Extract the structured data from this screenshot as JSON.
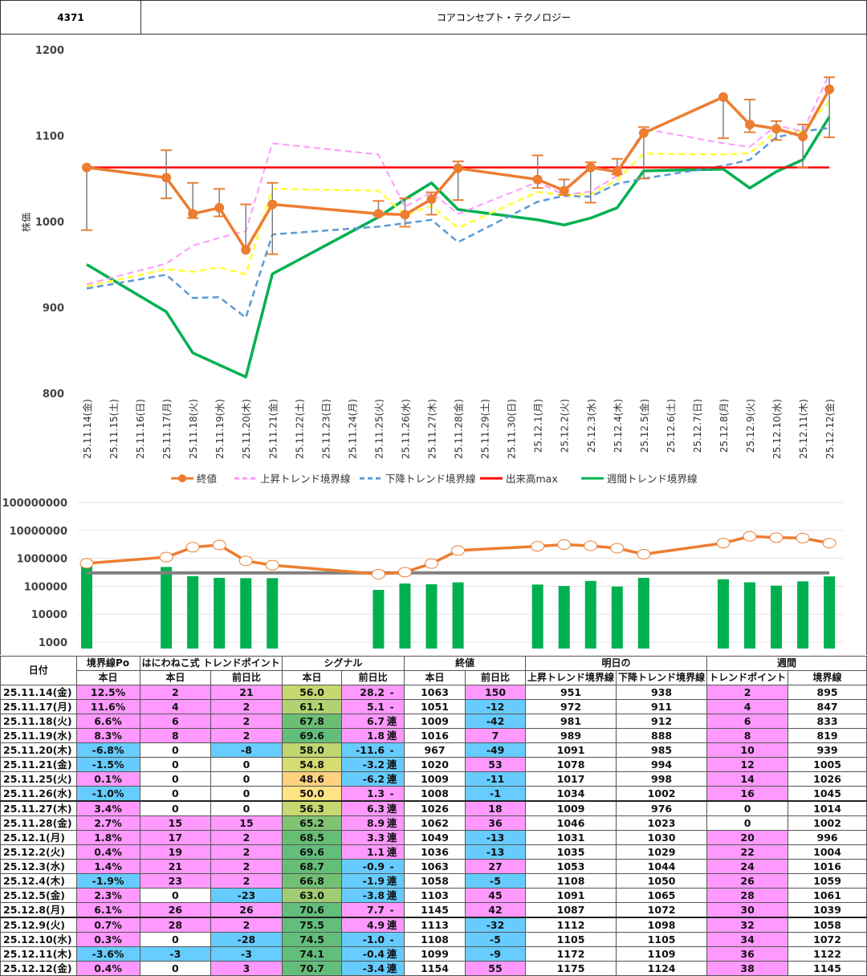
{
  "header": {
    "code": "4371",
    "title": "コアコンセプト・テクノロジー"
  },
  "colors": {
    "close": "#ed7d31",
    "upper": "#ff99ff",
    "lower": "#5b9bd5",
    "mid": "#ffff33",
    "volmax": "#ff0000",
    "weekly": "#00b050",
    "volume_bar": "#00b050",
    "volume_line": "#ed7d31",
    "volume_ref": "#808080",
    "pink_cell": "#ff99ff",
    "blue_cell": "#66ccff"
  },
  "chart_data": [
    {
      "type": "line",
      "ylabel": "株価",
      "ylim": [
        800,
        1200
      ],
      "yticks": [
        "800",
        "900",
        "1000",
        "1100",
        "1200"
      ],
      "grid": false,
      "legend_placement": "bottom",
      "categories": [
        "25.11.14(金)",
        "25.11.15(土)",
        "25.11.16(日)",
        "25.11.17(月)",
        "25.11.18(火)",
        "25.11.19(水)",
        "25.11.20(木)",
        "25.11.21(金)",
        "25.11.22(土)",
        "25.11.23(日)",
        "25.11.24(月)",
        "25.11.25(火)",
        "25.11.26(水)",
        "25.11.27(木)",
        "25.11.28(金)",
        "25.11.29(土)",
        "25.11.30(日)",
        "25.12.1(月)",
        "25.12.2(火)",
        "25.12.3(水)",
        "25.12.4(木)",
        "25.12.5(金)",
        "25.12.6(土)",
        "25.12.7(日)",
        "25.12.8(月)",
        "25.12.9(火)",
        "25.12.10(水)",
        "25.12.11(木)",
        "25.12.12(金)"
      ],
      "x": [
        "25.11.14(金)",
        "25.11.17(月)",
        "25.11.18(火)",
        "25.11.19(水)",
        "25.11.20(木)",
        "25.11.21(金)",
        "25.11.25(火)",
        "25.11.26(水)",
        "25.11.27(木)",
        "25.11.28(金)",
        "25.12.1(月)",
        "25.12.2(火)",
        "25.12.3(水)",
        "25.12.4(木)",
        "25.12.5(金)",
        "25.12.8(月)",
        "25.12.9(火)",
        "25.12.10(水)",
        "25.12.11(木)",
        "25.12.12(金)"
      ],
      "series": [
        {
          "name": "終値",
          "key": "close",
          "style": "line-marker",
          "values": [
            1063,
            1051,
            1009,
            1016,
            967,
            1020,
            1009,
            1008,
            1026,
            1062,
            1049,
            1036,
            1063,
            1058,
            1103,
            1145,
            1113,
            1108,
            1099,
            1154
          ],
          "error_high": [
            1063,
            1083,
            1045,
            1038,
            1020,
            1045,
            1024,
            1027,
            1034,
            1070,
            1077,
            1049,
            1069,
            1073,
            1110,
            1145,
            1142,
            1117,
            1113,
            1168
          ],
          "error_low": [
            990,
            1027,
            1004,
            1006,
            967,
            962,
            1007,
            994,
            1008,
            1025,
            1039,
            1031,
            1022,
            1055,
            1050,
            1097,
            1104,
            1095,
            1063,
            1098
          ]
        },
        {
          "name": "上昇トレンド境界線",
          "key": "upper",
          "style": "dashed",
          "values": [
            927,
            951,
            972,
            981,
            989,
            1091,
            1078,
            1017,
            1034,
            1009,
            1046,
            1031,
            1035,
            1053,
            1108,
            1091,
            1087,
            1112,
            1105,
            1172
          ]
        },
        {
          "name": "下降トレンド境界線",
          "key": "lower",
          "style": "dashed",
          "values": [
            922,
            938,
            911,
            912,
            888,
            985,
            994,
            998,
            1002,
            976,
            1023,
            1030,
            1029,
            1044,
            1050,
            1065,
            1072,
            1098,
            1105,
            1109
          ]
        },
        {
          "key": "mid",
          "style": "dashed",
          "values": [
            924.5,
            944.5,
            941.5,
            946.5,
            938.5,
            1038,
            1036,
            1007.5,
            1018,
            992.5,
            1034.5,
            1030.5,
            1032,
            1048.5,
            1079,
            1078,
            1079.5,
            1105,
            1105,
            1140.5
          ]
        },
        {
          "name": "出来高max",
          "key": "volmax",
          "style": "line",
          "constant": 1063
        },
        {
          "name": "週間トレンド境界線",
          "key": "weekly",
          "style": "line",
          "values": [
            950,
            895,
            847,
            833,
            819,
            939,
            1005,
            1026,
            1045,
            1014,
            1002,
            996,
            1004,
            1016,
            1059,
            1061,
            1039,
            1058,
            1072,
            1122
          ]
        }
      ]
    },
    {
      "type": "bar",
      "scale": "log",
      "ylim": [
        1000,
        100000000
      ],
      "yticks": [
        "1000",
        "10000",
        "100000",
        "1000000",
        "10000000",
        "100000000"
      ],
      "grid": true,
      "x": [
        "25.11.14(金)",
        "25.11.17(月)",
        "25.11.18(火)",
        "25.11.19(水)",
        "25.11.20(木)",
        "25.11.21(金)",
        "25.11.25(火)",
        "25.11.26(水)",
        "25.11.27(木)",
        "25.11.28(金)",
        "25.12.1(月)",
        "25.12.2(火)",
        "25.12.3(水)",
        "25.12.4(木)",
        "25.12.5(金)",
        "25.12.8(月)",
        "25.12.9(火)",
        "25.12.10(水)",
        "25.12.11(木)",
        "25.12.12(金)"
      ],
      "bars": [
        550000,
        490000,
        230000,
        200000,
        195000,
        195000,
        74000,
        125000,
        118000,
        138000,
        115000,
        102000,
        155000,
        98000,
        200000,
        178000,
        138000,
        105000,
        150000,
        225000
      ],
      "line": [
        660000,
        1100000,
        2500000,
        3000000,
        810000,
        570000,
        270000,
        320000,
        650000,
        1900000,
        2700000,
        3100000,
        2800000,
        2300000,
        1400000,
        3500000,
        6100000,
        5500000,
        5300000,
        3500000
      ],
      "reference": 300000
    }
  ],
  "table": {
    "headers": {
      "date": "日付",
      "po": "境界線Po",
      "tp": "はにわねこ式 トレンドポイント",
      "signal": "シグナル",
      "close": "終値",
      "next": "明日の",
      "weekly": "週間",
      "today": "本日",
      "diff": "前日比",
      "upper": "上昇トレンド境界線",
      "lower": "下降トレンド境界線",
      "wtp": "トレンドポイント",
      "wline": "境界線"
    },
    "rows": [
      {
        "date": "25.11.14(金)",
        "po": "12.5%",
        "tp": "2",
        "tpd": "21",
        "sig": "56.0",
        "sigc": "#c6d870",
        "sigd": "28.2",
        "mk": "-",
        "close": "1063",
        "cd": "150",
        "up": "951",
        "lo": "938",
        "wtp": "2",
        "wl": "895"
      },
      {
        "date": "25.11.17(月)",
        "po": "11.6%",
        "tp": "4",
        "tpd": "2",
        "sig": "61.1",
        "sigc": "#b0d270",
        "sigd": "5.1",
        "mk": "-",
        "close": "1051",
        "cd": "-12",
        "up": "972",
        "lo": "911",
        "wtp": "4",
        "wl": "847"
      },
      {
        "date": "25.11.18(火)",
        "po": "6.6%",
        "tp": "6",
        "tpd": "2",
        "sig": "67.8",
        "sigc": "#6cbe74",
        "sigd": "6.7",
        "mk": "連",
        "close": "1009",
        "cd": "-42",
        "up": "981",
        "lo": "912",
        "wtp": "6",
        "wl": "833"
      },
      {
        "date": "25.11.19(水)",
        "po": "8.3%",
        "tp": "8",
        "tpd": "2",
        "sig": "69.6",
        "sigc": "#63be7b",
        "sigd": "1.8",
        "mk": "連",
        "close": "1016",
        "cd": "7",
        "up": "989",
        "lo": "888",
        "wtp": "8",
        "wl": "819"
      },
      {
        "date": "25.11.20(木)",
        "po": "-6.8%",
        "tp": "0",
        "tpd": "-8",
        "sig": "58.0",
        "sigc": "#c0d66f",
        "sigd": "-11.6",
        "mk": "-",
        "close": "967",
        "cd": "-49",
        "up": "1091",
        "lo": "985",
        "wtp": "10",
        "wl": "939"
      },
      {
        "date": "25.11.21(金)",
        "po": "-1.5%",
        "tp": "0",
        "tpd": "0",
        "sig": "54.8",
        "sigc": "#d4dc72",
        "sigd": "-3.2",
        "mk": "連",
        "close": "1020",
        "cd": "53",
        "up": "1078",
        "lo": "994",
        "wtp": "12",
        "wl": "1005"
      },
      {
        "date": "25.11.25(火)",
        "po": "0.1%",
        "tp": "0",
        "tpd": "0",
        "sig": "48.6",
        "sigc": "#ffd27f",
        "sigd": "-6.2",
        "mk": "連",
        "close": "1009",
        "cd": "-11",
        "up": "1017",
        "lo": "998",
        "wtp": "14",
        "wl": "1026"
      },
      {
        "date": "25.11.26(水)",
        "po": "-1.0%",
        "tp": "0",
        "tpd": "0",
        "sig": "50.0",
        "sigc": "#ffe384",
        "sigd": "1.3",
        "mk": "-",
        "close": "1008",
        "cd": "-1",
        "up": "1034",
        "lo": "1002",
        "wtp": "16",
        "wl": "1045"
      },
      {
        "date": "25.11.27(木)",
        "po": "3.4%",
        "tp": "0",
        "tpd": "0",
        "sig": "56.3",
        "sigc": "#c6d870",
        "sigd": "6.3",
        "mk": "連",
        "close": "1026",
        "cd": "18",
        "up": "1009",
        "lo": "976",
        "wtp": "0",
        "wl": "1014",
        "week_start": true
      },
      {
        "date": "25.11.28(金)",
        "po": "2.7%",
        "tp": "15",
        "tpd": "15",
        "sig": "65.2",
        "sigc": "#7fc373",
        "sigd": "8.9",
        "mk": "連",
        "close": "1062",
        "cd": "36",
        "up": "1046",
        "lo": "1023",
        "wtp": "0",
        "wl": "1002"
      },
      {
        "date": "25.12.1(月)",
        "po": "1.8%",
        "tp": "17",
        "tpd": "2",
        "sig": "68.5",
        "sigc": "#66be74",
        "sigd": "3.3",
        "mk": "連",
        "close": "1049",
        "cd": "-13",
        "up": "1031",
        "lo": "1030",
        "wtp": "20",
        "wl": "996"
      },
      {
        "date": "25.12.2(火)",
        "po": "0.4%",
        "tp": "19",
        "tpd": "2",
        "sig": "69.6",
        "sigc": "#63be7b",
        "sigd": "1.1",
        "mk": "連",
        "close": "1036",
        "cd": "-13",
        "up": "1035",
        "lo": "1029",
        "wtp": "22",
        "wl": "1004"
      },
      {
        "date": "25.12.3(水)",
        "po": "1.4%",
        "tp": "21",
        "tpd": "2",
        "sig": "68.7",
        "sigc": "#65be75",
        "sigd": "-0.9",
        "mk": "-",
        "close": "1063",
        "cd": "27",
        "up": "1053",
        "lo": "1044",
        "wtp": "24",
        "wl": "1016"
      },
      {
        "date": "25.12.4(木)",
        "po": "-1.9%",
        "tp": "23",
        "tpd": "2",
        "sig": "66.8",
        "sigc": "#72c073",
        "sigd": "-1.9",
        "mk": "連",
        "close": "1058",
        "cd": "-5",
        "up": "1108",
        "lo": "1050",
        "wtp": "26",
        "wl": "1059"
      },
      {
        "date": "25.12.5(金)",
        "po": "2.3%",
        "tp": "0",
        "tpd": "-23",
        "sig": "63.0",
        "sigc": "#a0cd71",
        "sigd": "-3.8",
        "mk": "連",
        "close": "1103",
        "cd": "45",
        "up": "1091",
        "lo": "1065",
        "wtp": "28",
        "wl": "1061"
      },
      {
        "date": "25.12.8(月)",
        "po": "6.1%",
        "tp": "26",
        "tpd": "26",
        "sig": "70.6",
        "sigc": "#63be7b",
        "sigd": "7.7",
        "mk": "-",
        "close": "1145",
        "cd": "42",
        "up": "1087",
        "lo": "1072",
        "wtp": "30",
        "wl": "1039"
      },
      {
        "date": "25.12.9(火)",
        "po": "0.7%",
        "tp": "28",
        "tpd": "2",
        "sig": "75.5",
        "sigc": "#63be7b",
        "sigd": "4.9",
        "mk": "連",
        "close": "1113",
        "cd": "-32",
        "up": "1112",
        "lo": "1098",
        "wtp": "32",
        "wl": "1058",
        "week_start": true
      },
      {
        "date": "25.12.10(水)",
        "po": "0.3%",
        "tp": "0",
        "tpd": "-28",
        "sig": "74.5",
        "sigc": "#63be7b",
        "sigd": "-1.0",
        "mk": "-",
        "close": "1108",
        "cd": "-5",
        "up": "1105",
        "lo": "1105",
        "wtp": "34",
        "wl": "1072"
      },
      {
        "date": "25.12.11(木)",
        "po": "-3.6%",
        "tp": "-3",
        "tpd": "-3",
        "sig": "74.1",
        "sigc": "#63be7b",
        "sigd": "-0.4",
        "mk": "連",
        "close": "1099",
        "cd": "-9",
        "up": "1172",
        "lo": "1109",
        "wtp": "36",
        "wl": "1122"
      },
      {
        "date": "25.12.12(金)",
        "po": "0.4%",
        "tp": "0",
        "tpd": "3",
        "sig": "70.7",
        "sigc": "#63be7b",
        "sigd": "-3.4",
        "mk": "連",
        "close": "1154",
        "cd": "55",
        "up": "1175",
        "lo": "1124",
        "wtp": "38",
        "wl": "1145"
      }
    ]
  }
}
